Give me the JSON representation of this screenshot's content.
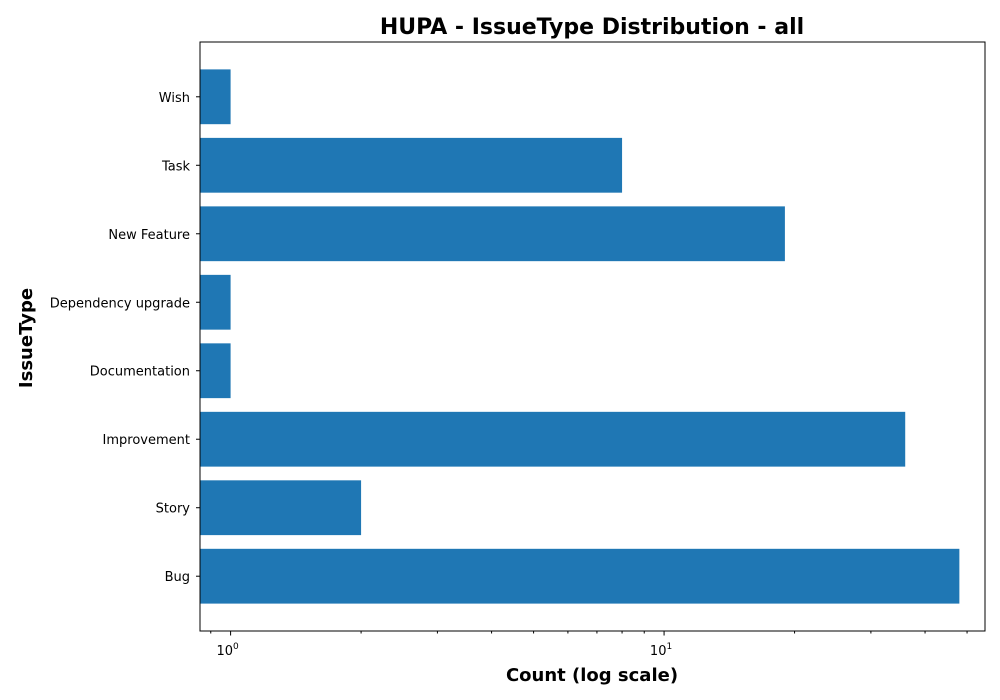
{
  "chart_data": {
    "type": "bar",
    "orientation": "horizontal",
    "title": "HUPA - IssueType Distribution - all",
    "xlabel": "Count (log scale)",
    "ylabel": "IssueType",
    "x_scale": "log",
    "xlim": [
      0.85,
      55
    ],
    "grid": false,
    "categories": [
      "Bug",
      "Story",
      "Improvement",
      "Documentation",
      "Dependency upgrade",
      "New Feature",
      "Task",
      "Wish"
    ],
    "values": [
      48,
      2,
      36,
      1,
      1,
      19,
      8,
      1
    ],
    "bar_color": "#1f77b4",
    "x_ticks": [
      {
        "value": 1,
        "base": "10",
        "exp": "0"
      },
      {
        "value": 10,
        "base": "10",
        "exp": "1"
      }
    ]
  }
}
